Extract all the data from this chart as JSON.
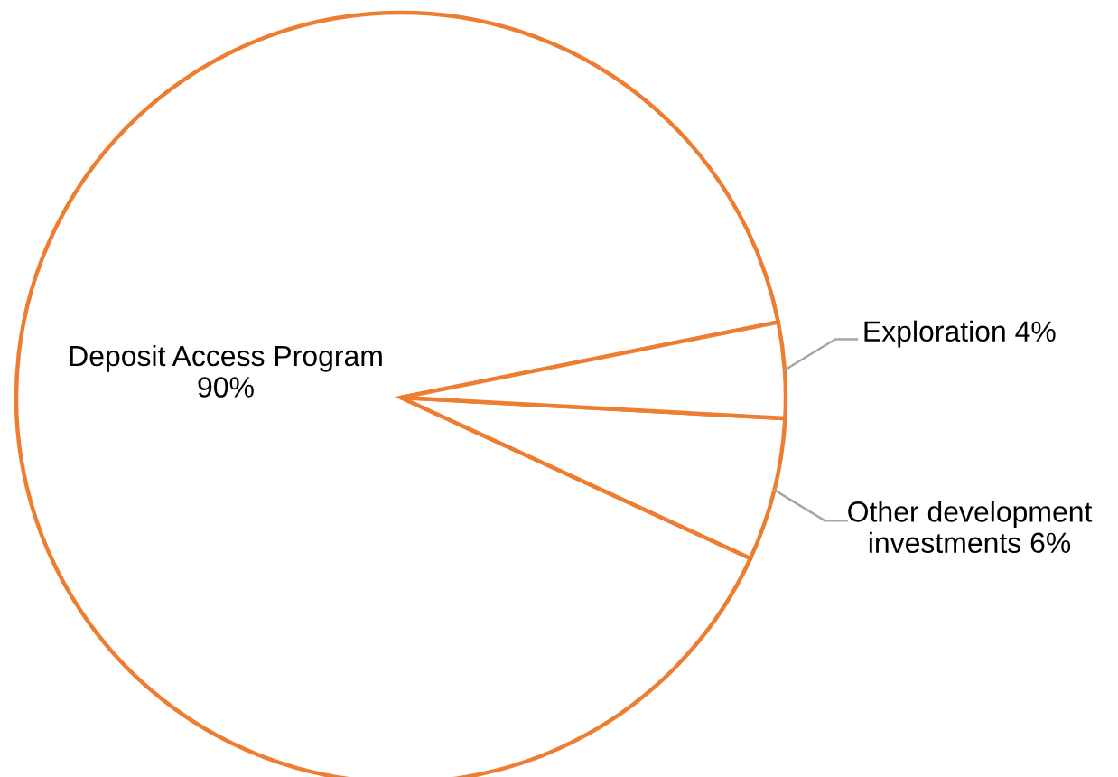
{
  "chart_data": {
    "type": "pie",
    "categories": [
      "Deposit Access Program",
      "Other development investments",
      "Exploration"
    ],
    "values": [
      90,
      6,
      4
    ],
    "value_labels": [
      "90%",
      "6%",
      "4%"
    ],
    "colors": [
      "#ffffff",
      "#ffffff",
      "#ffffff"
    ],
    "color": "#ed7d31",
    "legend": false
  }
}
